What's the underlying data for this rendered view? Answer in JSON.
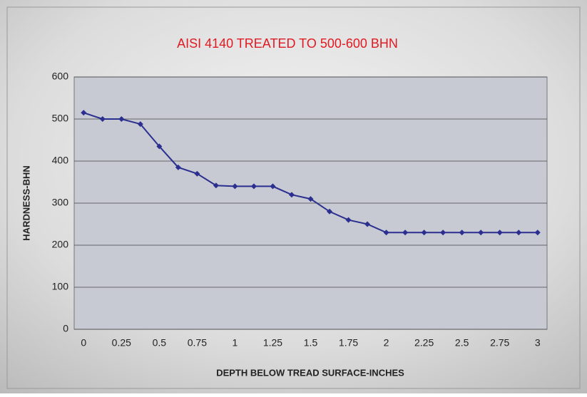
{
  "chart_data": {
    "type": "line",
    "title": "AISI 4140 TREATED TO 500-600 BHN",
    "x_label": "DEPTH BELOW TREAD SURFACE-INCHES",
    "y_label": "HARDNESS-BHN",
    "categories": [
      "0",
      null,
      "0.25",
      null,
      "0.5",
      null,
      "0.75",
      null,
      "1",
      null,
      "1.25",
      null,
      "1.5",
      null,
      "1.75",
      null,
      "2",
      null,
      "2.25",
      null,
      "2.5",
      null,
      "2.75",
      null,
      "3"
    ],
    "series": [
      {
        "name": "Hardness",
        "color": "#2b2f8f",
        "values": [
          515,
          500,
          500,
          488,
          435,
          385,
          370,
          342,
          340,
          340,
          340,
          320,
          310,
          280,
          260,
          250,
          230,
          230,
          230,
          230,
          230,
          230,
          230,
          230,
          230
        ]
      }
    ],
    "ylim": [
      0,
      600
    ],
    "yticks": [
      0,
      100,
      200,
      300,
      400,
      500,
      600
    ],
    "grid": true
  }
}
